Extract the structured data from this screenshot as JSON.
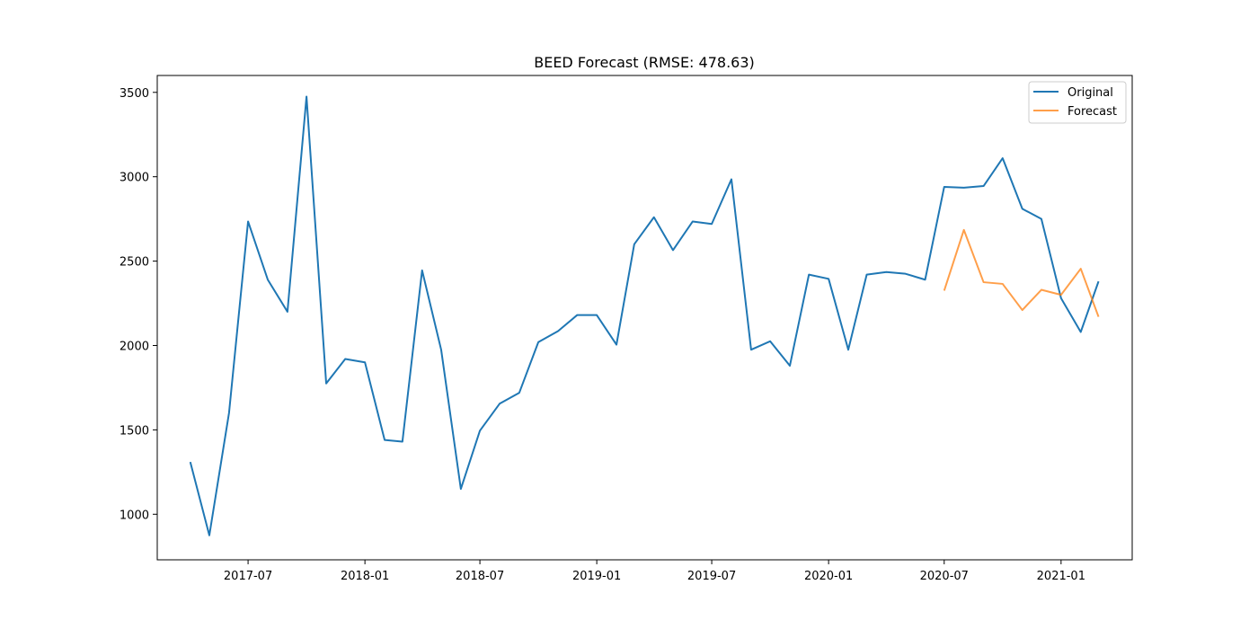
{
  "chart_data": {
    "type": "line",
    "title": "BEED Forecast (RMSE: 478.63)",
    "xlabel": "",
    "ylabel": "",
    "x_ticks": [
      "2017-07",
      "2018-01",
      "2018-07",
      "2019-01",
      "2019-07",
      "2020-01",
      "2020-07",
      "2021-01"
    ],
    "y_ticks": [
      1000,
      1500,
      2000,
      2500,
      3000,
      3500
    ],
    "xlim": [
      "2017-02-08",
      "2021-04-23"
    ],
    "ylim": [
      730,
      3600
    ],
    "grid": false,
    "legend_position": "top-right",
    "series": [
      {
        "name": "Original",
        "color": "#1f77b4",
        "x": [
          "2017-04",
          "2017-05",
          "2017-06",
          "2017-07",
          "2017-08",
          "2017-09",
          "2017-10",
          "2017-11",
          "2017-12",
          "2018-01",
          "2018-02",
          "2018-03",
          "2018-04",
          "2018-05",
          "2018-06",
          "2018-07",
          "2018-08",
          "2018-09",
          "2018-10",
          "2018-11",
          "2018-12",
          "2019-01",
          "2019-02",
          "2019-03",
          "2019-04",
          "2019-05",
          "2019-06",
          "2019-07",
          "2019-08",
          "2019-09",
          "2019-10",
          "2019-11",
          "2019-12",
          "2020-01",
          "2020-02",
          "2020-03",
          "2020-04",
          "2020-05",
          "2020-06",
          "2020-07",
          "2020-08",
          "2020-09",
          "2020-10",
          "2020-11",
          "2020-12",
          "2021-01",
          "2021-02",
          "2021-03"
        ],
        "values": [
          1310,
          875,
          1600,
          2735,
          2390,
          2200,
          3475,
          1775,
          1920,
          1900,
          1440,
          1430,
          2445,
          1975,
          1150,
          1495,
          1655,
          1720,
          2020,
          2085,
          2180,
          2180,
          2005,
          2600,
          2760,
          2565,
          2735,
          2720,
          2985,
          1975,
          2025,
          1880,
          2420,
          2395,
          1975,
          2420,
          2435,
          2425,
          2390,
          2940,
          2935,
          2945,
          3110,
          2810,
          2750,
          2280,
          2080,
          2380
        ]
      },
      {
        "name": "Forecast",
        "color": "#ff7f0e",
        "x": [
          "2020-07",
          "2020-08",
          "2020-09",
          "2020-10",
          "2020-11",
          "2020-12",
          "2021-01",
          "2021-02",
          "2021-03"
        ],
        "values": [
          2325,
          2685,
          2375,
          2365,
          2210,
          2330,
          2300,
          2455,
          2170
        ]
      }
    ]
  }
}
